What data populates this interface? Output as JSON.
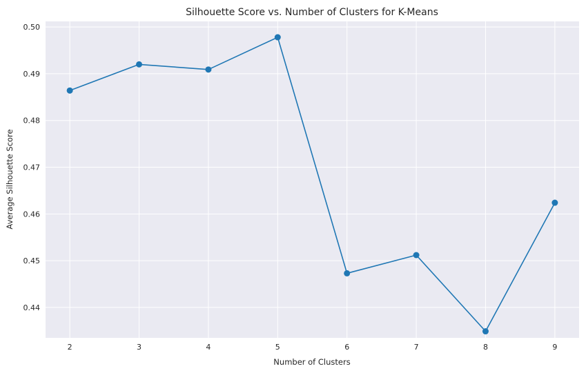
{
  "chart_data": {
    "type": "line",
    "title": "Silhouette Score vs. Number of Clusters for K-Means",
    "xlabel": "Number of Clusters",
    "ylabel": "Average Silhouette Score",
    "x": [
      2,
      3,
      4,
      5,
      6,
      7,
      8,
      9
    ],
    "series": [
      {
        "values": [
          0.4864,
          0.492,
          0.4909,
          0.4978,
          0.4473,
          0.4512,
          0.4349,
          0.4624
        ]
      }
    ],
    "xticks": [
      2,
      3,
      4,
      5,
      6,
      7,
      8,
      9
    ],
    "yticks": [
      "0.44",
      "0.45",
      "0.46",
      "0.47",
      "0.48",
      "0.49",
      "0.50"
    ],
    "xlim": [
      1.65,
      9.35
    ],
    "ylim": [
      0.4335,
      0.5012
    ],
    "grid": true,
    "style": {
      "background": "#eaeaf2",
      "line_color": "#1f77b4",
      "marker": "circle"
    }
  }
}
